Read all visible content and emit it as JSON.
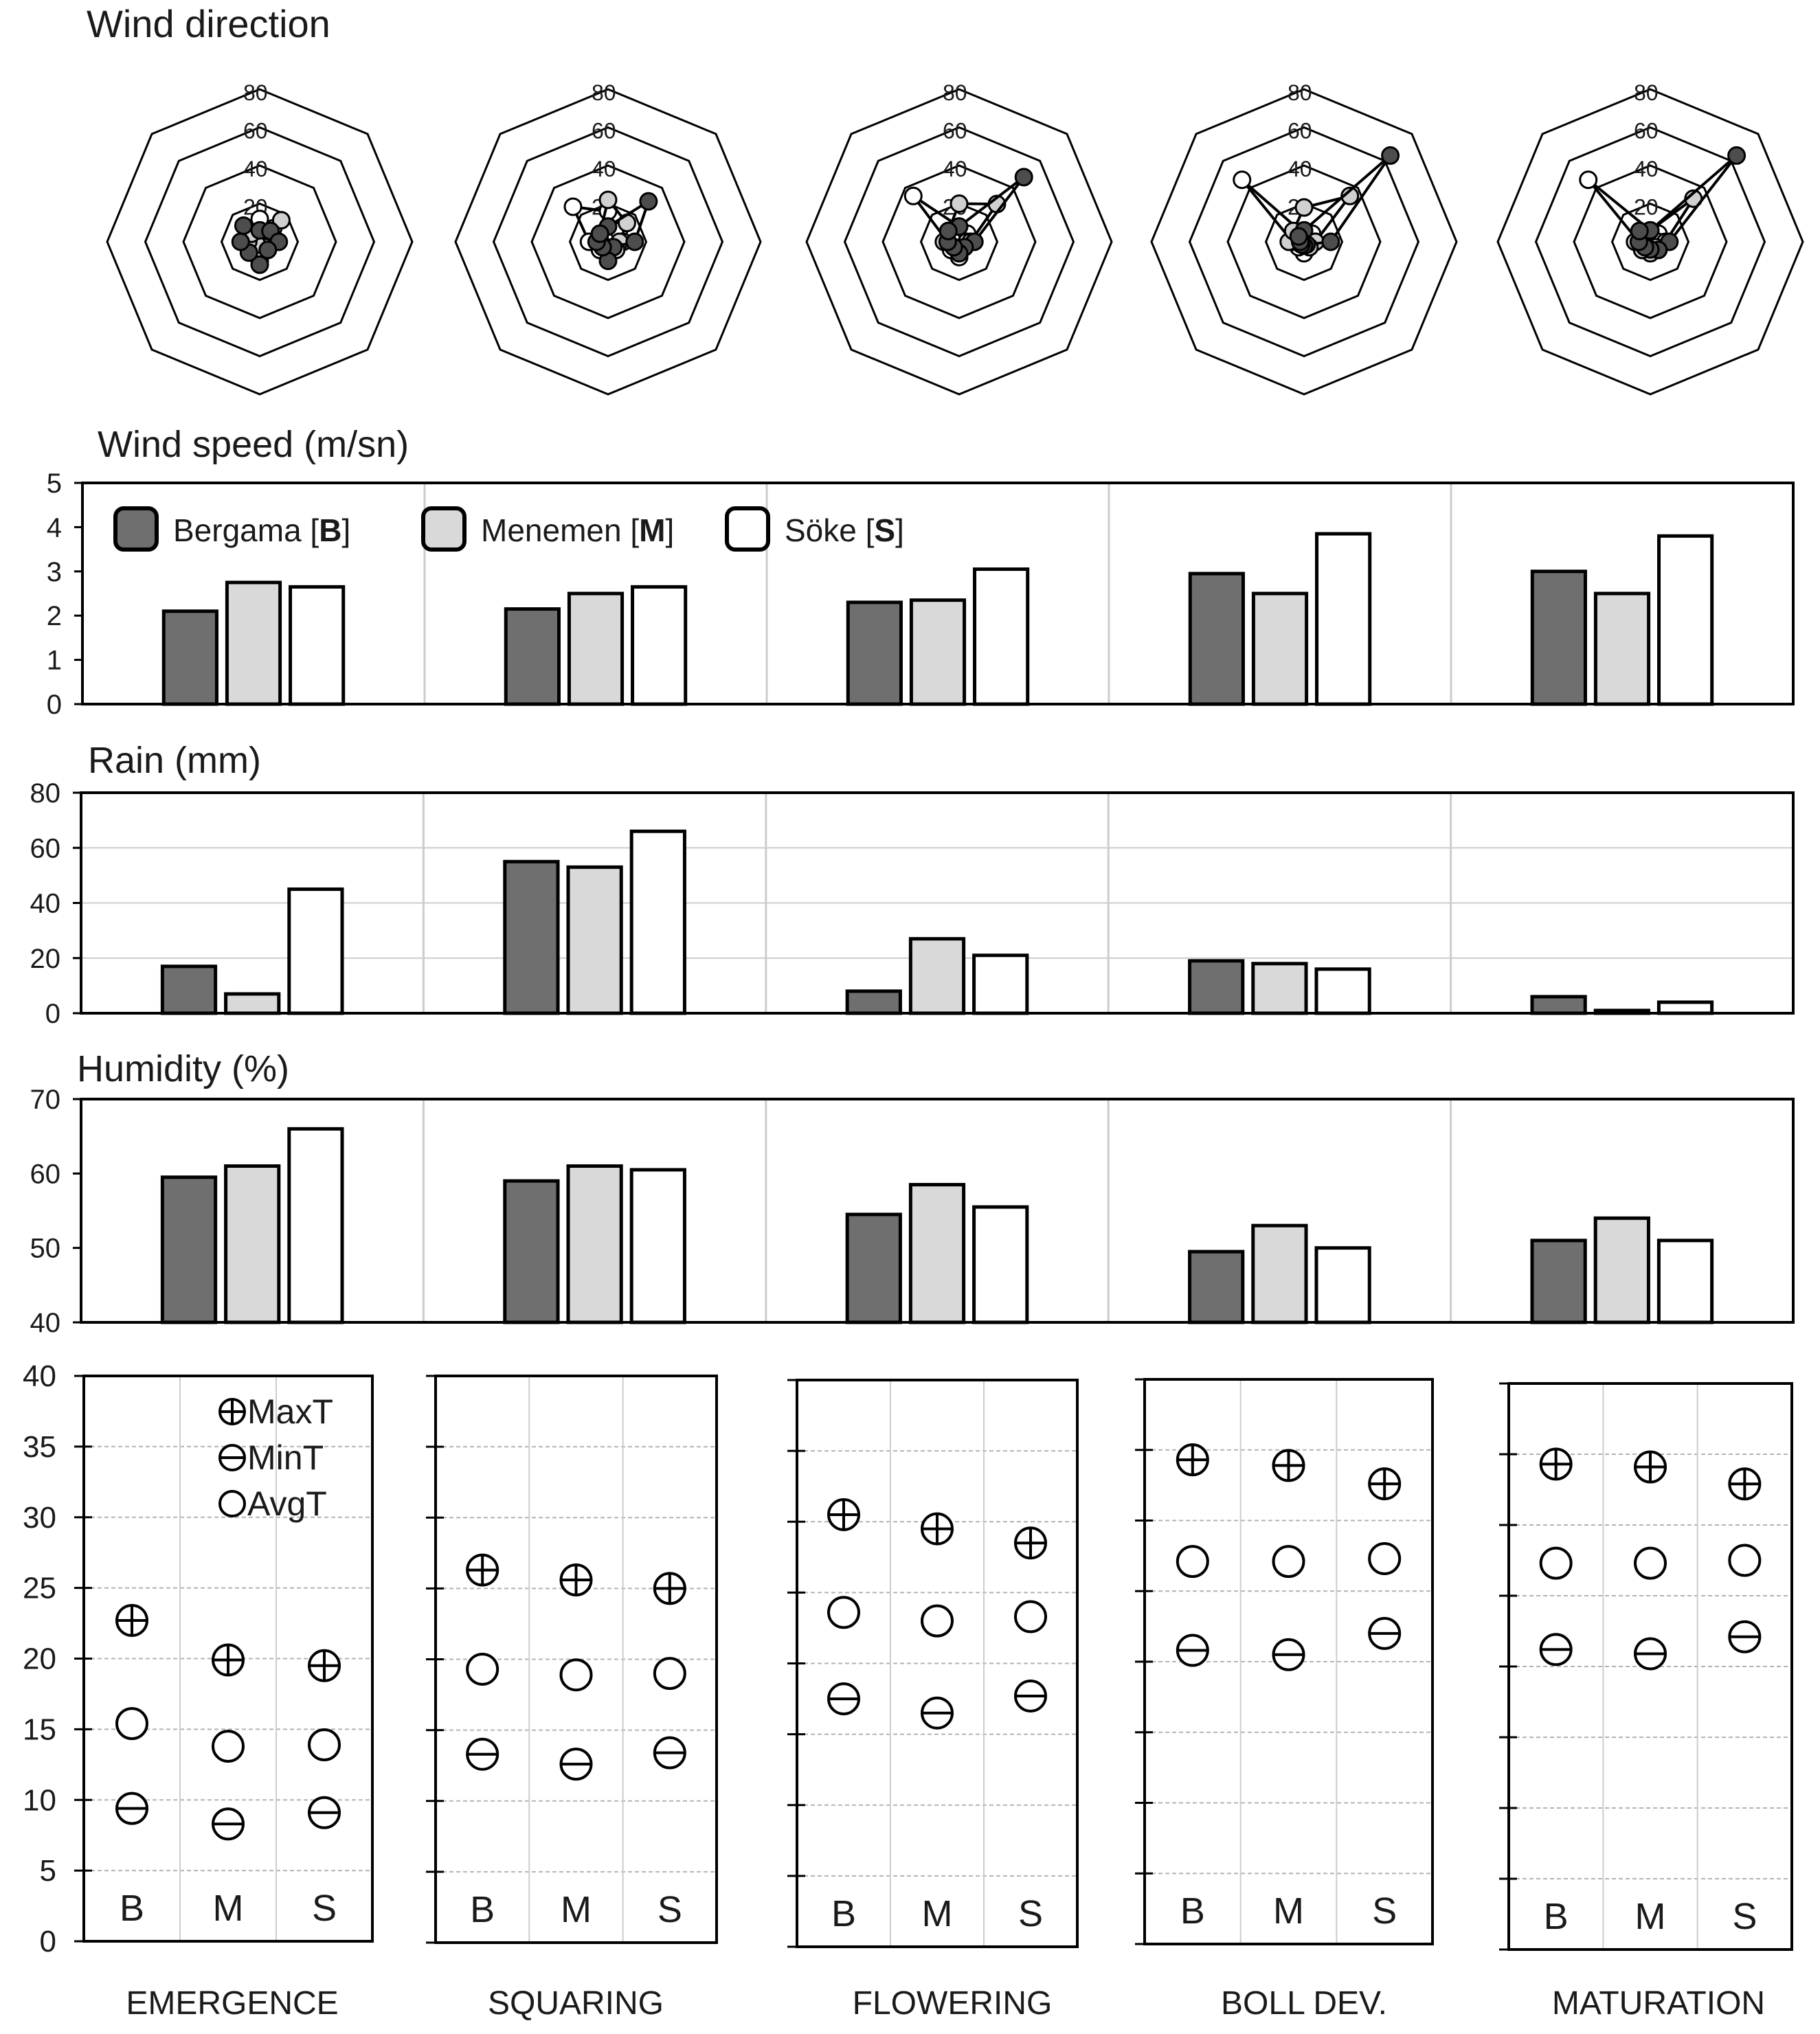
{
  "stations": [
    {
      "key": "B",
      "name": "Bergama",
      "code": "B",
      "color": "#7f7f7f"
    },
    {
      "key": "M",
      "name": "Menemen",
      "code": "M",
      "color": "#d9d9d9"
    },
    {
      "key": "S",
      "name": "Söke",
      "code": "S",
      "color": "#ffffff"
    }
  ],
  "stages": [
    "EMERGENCE",
    "SQUARING",
    "FLOWERING",
    "BOLL DEV.",
    "MATURATION"
  ],
  "chart_data": [
    {
      "id": "wind-direction",
      "type": "radar",
      "title": "Wind direction",
      "rlim": [
        0,
        80
      ],
      "rticks": [
        20,
        40,
        60,
        80
      ],
      "rticks_labels": [
        "20",
        "40",
        "60",
        "80"
      ],
      "num_axes": 8,
      "series_by_stage": [
        {
          "stage": "EMERGENCE",
          "B": [
            6,
            8,
            10,
            6,
            12,
            8,
            10,
            12
          ],
          "M": [
            5,
            16,
            6,
            4,
            4,
            2,
            6,
            6
          ],
          "S": [
            12,
            10,
            4,
            6,
            10,
            6,
            6,
            6
          ]
        },
        {
          "stage": "SQUARING",
          "B": [
            8,
            30,
            14,
            4,
            10,
            4,
            6,
            6
          ],
          "M": [
            22,
            14,
            6,
            6,
            4,
            4,
            4,
            6
          ],
          "S": [
            16,
            8,
            8,
            4,
            8,
            6,
            10,
            26
          ]
        },
        {
          "stage": "FLOWERING",
          "B": [
            8,
            48,
            8,
            4,
            6,
            4,
            6,
            8
          ],
          "M": [
            20,
            28,
            6,
            4,
            4,
            4,
            8,
            8
          ],
          "S": [
            8,
            6,
            4,
            4,
            8,
            6,
            6,
            34
          ]
        },
        {
          "stage": "BOLL DEV.",
          "B": [
            6,
            64,
            14,
            2,
            2,
            2,
            2,
            4
          ],
          "M": [
            18,
            34,
            6,
            4,
            2,
            2,
            8,
            8
          ],
          "S": [
            4,
            6,
            6,
            4,
            6,
            4,
            6,
            46
          ]
        },
        {
          "stage": "MATURATION",
          "B": [
            6,
            64,
            10,
            6,
            4,
            4,
            6,
            8
          ],
          "M": [
            6,
            32,
            8,
            4,
            6,
            6,
            8,
            8
          ],
          "S": [
            6,
            6,
            4,
            6,
            4,
            6,
            6,
            46
          ]
        }
      ]
    },
    {
      "id": "wind-speed",
      "type": "bar",
      "title": "Wind speed (m/sn)",
      "categories": [
        "EMERGENCE",
        "SQUARING",
        "FLOWERING",
        "BOLL DEV.",
        "MATURATION"
      ],
      "series": [
        {
          "name": "Bergama",
          "code": "B",
          "values": [
            2.1,
            2.15,
            2.3,
            2.95,
            3.0
          ]
        },
        {
          "name": "Menemen",
          "code": "M",
          "values": [
            2.75,
            2.5,
            2.35,
            2.5,
            2.5
          ]
        },
        {
          "name": "Söke",
          "code": "S",
          "values": [
            2.65,
            2.65,
            3.05,
            3.85,
            3.8
          ]
        }
      ],
      "ylim": [
        0,
        5
      ],
      "yticks": [
        0,
        1,
        2,
        3,
        4,
        5
      ],
      "ytick_labels": [
        "0",
        "1",
        "2",
        "3",
        "4",
        "5"
      ],
      "legend": "top-left"
    },
    {
      "id": "rain",
      "type": "bar",
      "title": "Rain (mm)",
      "categories": [
        "EMERGENCE",
        "SQUARING",
        "FLOWERING",
        "BOLL DEV.",
        "MATURATION"
      ],
      "series": [
        {
          "name": "Bergama",
          "code": "B",
          "values": [
            17,
            55,
            8,
            19,
            6
          ]
        },
        {
          "name": "Menemen",
          "code": "M",
          "values": [
            7,
            53,
            27,
            18,
            1
          ]
        },
        {
          "name": "Söke",
          "code": "S",
          "values": [
            45,
            66,
            21,
            16,
            4
          ]
        }
      ],
      "ylim": [
        0,
        80
      ],
      "yticks": [
        0,
        20,
        40,
        60,
        80
      ],
      "ytick_labels": [
        "0",
        "20",
        "40",
        "60",
        "80"
      ]
    },
    {
      "id": "humidity",
      "type": "bar",
      "title": "Humidity  (%)",
      "categories": [
        "EMERGENCE",
        "SQUARING",
        "FLOWERING",
        "BOLL DEV.",
        "MATURATION"
      ],
      "series": [
        {
          "name": "Bergama",
          "code": "B",
          "values": [
            59.5,
            59,
            54.5,
            49.5,
            51
          ]
        },
        {
          "name": "Menemen",
          "code": "M",
          "values": [
            61,
            61,
            58.5,
            53,
            54
          ]
        },
        {
          "name": "Söke",
          "code": "S",
          "values": [
            66,
            60.5,
            55.5,
            50,
            51
          ]
        }
      ],
      "ylim": [
        40,
        70
      ],
      "yticks": [
        40,
        50,
        60,
        70
      ],
      "ytick_labels": [
        "40",
        "50",
        "60",
        "70"
      ]
    },
    {
      "id": "temperature",
      "type": "scatter",
      "title": "",
      "ylim": [
        0,
        40
      ],
      "yticks": [
        0,
        5,
        10,
        15,
        20,
        25,
        30,
        35,
        40
      ],
      "ytick_labels": [
        "0",
        "5",
        "10",
        "15",
        "20",
        "25",
        "30",
        "35",
        "40"
      ],
      "x_labels": [
        "B",
        "M",
        "S"
      ],
      "legend": [
        "MaxT",
        "MinT",
        "AvgT"
      ],
      "panels": [
        {
          "stage": "EMERGENCE",
          "MaxT": [
            22.7,
            19.9,
            19.5
          ],
          "AvgT": [
            15.4,
            13.8,
            13.9
          ],
          "MinT": [
            9.4,
            8.3,
            9.1
          ]
        },
        {
          "stage": "SQUARING",
          "MaxT": [
            26.3,
            25.6,
            25.0
          ],
          "AvgT": [
            19.3,
            18.9,
            19.0
          ],
          "MinT": [
            13.3,
            12.6,
            13.4
          ]
        },
        {
          "stage": "FLOWERING",
          "MaxT": [
            30.5,
            29.5,
            28.5
          ],
          "AvgT": [
            23.6,
            23.0,
            23.3
          ],
          "MinT": [
            17.5,
            16.5,
            17.7
          ]
        },
        {
          "stage": "BOLL DEV.",
          "MaxT": [
            34.3,
            33.9,
            32.6
          ],
          "AvgT": [
            27.1,
            27.1,
            27.3
          ],
          "MinT": [
            20.8,
            20.5,
            22.0
          ]
        },
        {
          "stage": "MATURATION",
          "MaxT": [
            34.3,
            34.1,
            32.9
          ],
          "AvgT": [
            27.3,
            27.3,
            27.5
          ],
          "MinT": [
            21.2,
            20.9,
            22.1
          ]
        }
      ]
    }
  ]
}
